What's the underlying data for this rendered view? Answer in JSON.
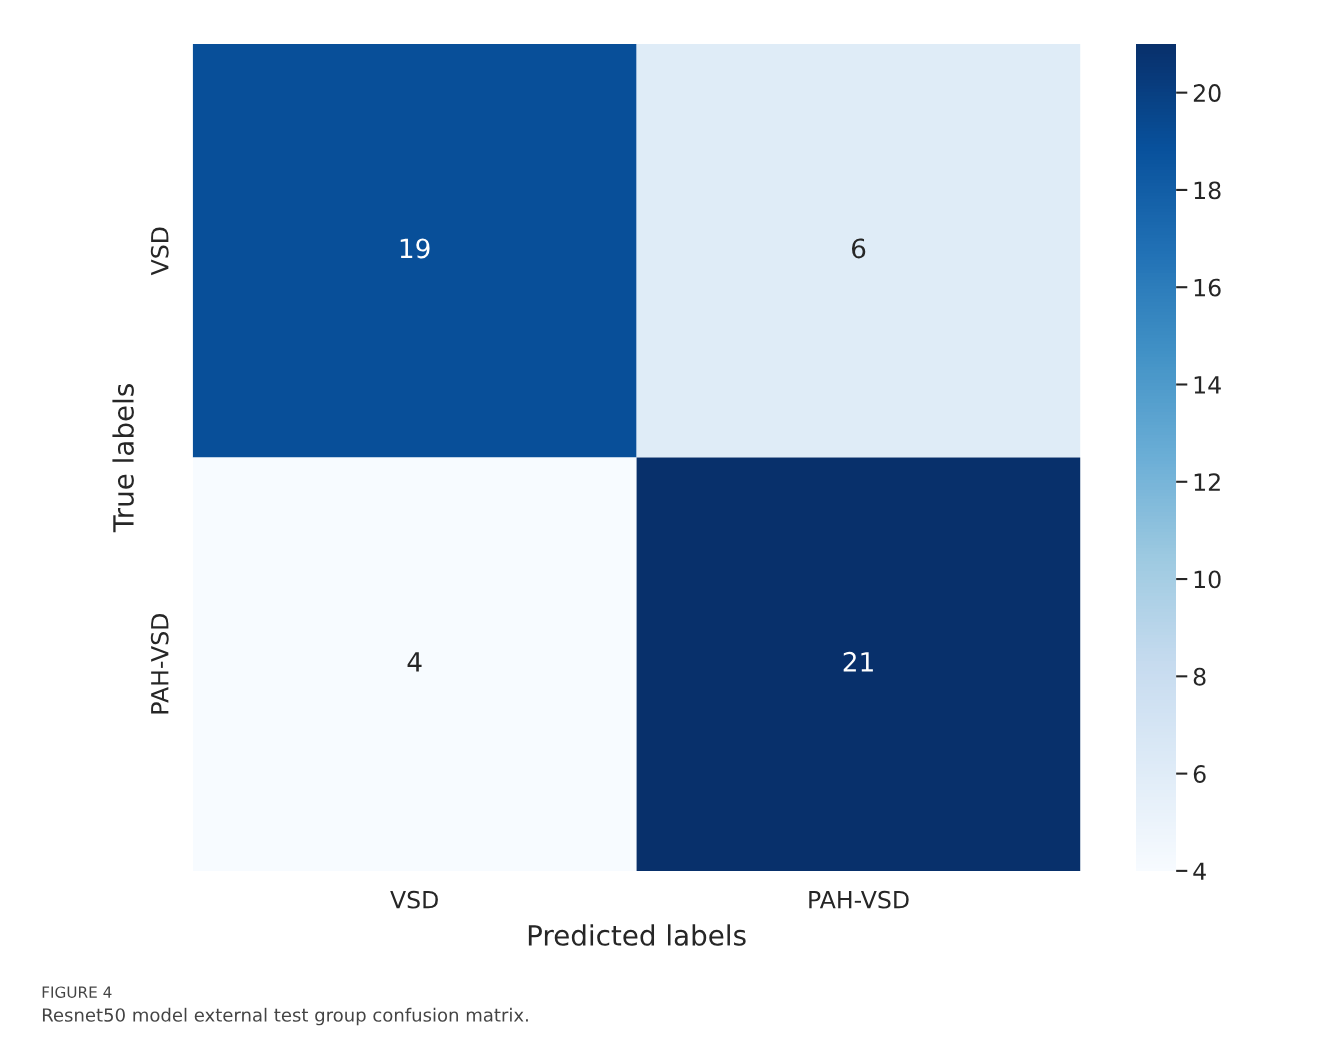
{
  "chart_data": {
    "type": "heatmap",
    "xlabel": "Predicted labels",
    "ylabel": "True labels",
    "categories": [
      "VSD",
      "PAH-VSD"
    ],
    "y_categories": [
      "VSD",
      "PAH-VSD"
    ],
    "cells": [
      [
        19,
        6
      ],
      [
        4,
        21
      ]
    ],
    "data_labels": true,
    "clim": [
      4,
      21
    ],
    "cticks": [
      4,
      6,
      8,
      10,
      12,
      14,
      16,
      18,
      20
    ],
    "annotations": [
      "FIGURE 4",
      "Resnet50 model external test group confusion matrix."
    ]
  }
}
